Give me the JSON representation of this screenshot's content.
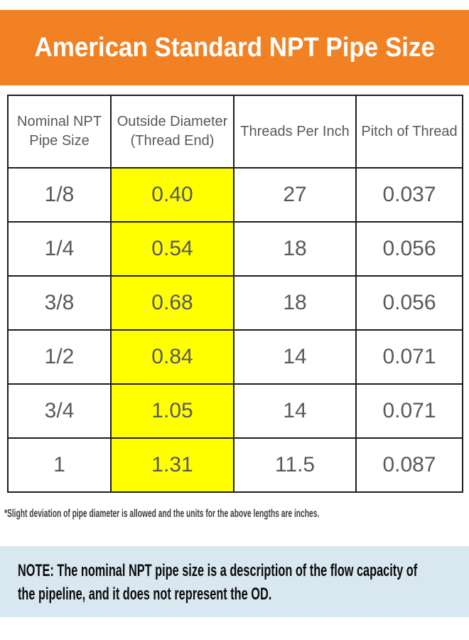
{
  "title": "American Standard NPT Pipe Size",
  "table": {
    "columns": [
      "Nominal NPT Pipe Size",
      "Outside Diameter (Thread End)",
      "Threads Per Inch",
      "Pitch of Thread"
    ],
    "rows": [
      [
        "1/8",
        "0.40",
        "27",
        "0.037"
      ],
      [
        "1/4",
        "0.54",
        "18",
        "0.056"
      ],
      [
        "3/8",
        "0.68",
        "18",
        "0.056"
      ],
      [
        "1/2",
        "0.84",
        "14",
        "0.071"
      ],
      [
        "3/4",
        "1.05",
        "14",
        "0.071"
      ],
      [
        "1",
        "1.31",
        "11.5",
        "0.087"
      ]
    ],
    "highlighted_column_index": 1
  },
  "footnote": "*Slight deviation of pipe diameter is allowed and the units for the above lengths are inches.",
  "note": {
    "lines": [
      "NOTE: The nominal NPT pipe size is a description of the flow capacity of",
      "the pipeline, and it does not represent the OD."
    ]
  },
  "colors": {
    "accent_orange": "#F28123",
    "highlight_yellow": "#FFFF00",
    "note_blue": "#D9E7F1",
    "table_text": "#58595B",
    "border_black": "#1d1d1d"
  }
}
